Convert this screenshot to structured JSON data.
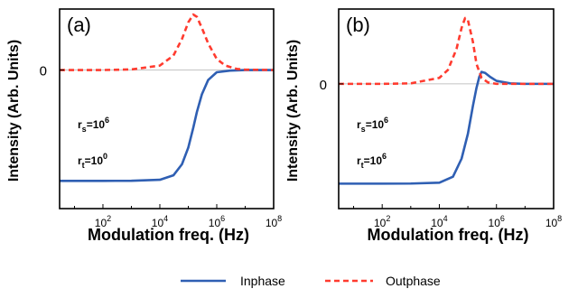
{
  "chart_data": [
    {
      "type": "line",
      "panel_label": "(a)",
      "xlabel": "Modulation freq. (Hz)",
      "ylabel": "Intensity (Arb. Units)",
      "x_scale": "log",
      "xlim": [
        3,
        100000000
      ],
      "ylim": [
        -1.25,
        0.55
      ],
      "y_tick_labels": [
        {
          "value": 0,
          "label": "0"
        }
      ],
      "zero_line": true,
      "x_ticks": [
        {
          "value": 100,
          "base": "10",
          "exp": "2"
        },
        {
          "value": 10000,
          "base": "10",
          "exp": "4"
        },
        {
          "value": 1000000,
          "base": "10",
          "exp": "6"
        },
        {
          "value": 100000000,
          "base": "10",
          "exp": "8"
        }
      ],
      "annotations": [
        {
          "id": "rs",
          "base": "r",
          "sub": "s",
          "mid": "=10",
          "sup": "6"
        },
        {
          "id": "rt",
          "base": "r",
          "sub": "t",
          "mid": "=10",
          "sup": "0"
        }
      ],
      "series": [
        {
          "name": "Inphase",
          "color": "#2f5fb3",
          "dash": "solid",
          "x": [
            3,
            10,
            100,
            1000,
            10000,
            30000,
            60000,
            100000,
            150000,
            200000,
            300000,
            500000,
            1000000,
            3000000,
            10000000,
            100000000
          ],
          "y": [
            -1.0,
            -1.0,
            -1.0,
            -0.999,
            -0.99,
            -0.95,
            -0.85,
            -0.7,
            -0.52,
            -0.38,
            -0.22,
            -0.09,
            -0.02,
            -0.005,
            0.0,
            0.0
          ]
        },
        {
          "name": "Outphase",
          "color": "#ff3b2f",
          "dash": "dashed",
          "x": [
            3,
            100,
            1000,
            10000,
            30000,
            60000,
            100000,
            150000,
            200000,
            300000,
            500000,
            1000000,
            2000000,
            5000000,
            10000000,
            100000000
          ],
          "y": [
            0.0,
            0.0,
            0.005,
            0.04,
            0.13,
            0.28,
            0.43,
            0.5,
            0.48,
            0.38,
            0.24,
            0.1,
            0.04,
            0.01,
            0.003,
            0.0
          ]
        }
      ]
    },
    {
      "type": "line",
      "panel_label": "(b)",
      "xlabel": "Modulation freq. (Hz)",
      "ylabel": "Intensity (Arb. Units)",
      "x_scale": "log",
      "xlim": [
        3,
        100000000
      ],
      "ylim": [
        -1.25,
        0.75
      ],
      "y_tick_labels": [
        {
          "value": 0,
          "label": "0"
        }
      ],
      "zero_line": true,
      "x_ticks": [
        {
          "value": 100,
          "base": "10",
          "exp": "2"
        },
        {
          "value": 10000,
          "base": "10",
          "exp": "4"
        },
        {
          "value": 1000000,
          "base": "10",
          "exp": "6"
        },
        {
          "value": 100000000,
          "base": "10",
          "exp": "8"
        }
      ],
      "annotations": [
        {
          "id": "rs",
          "base": "r",
          "sub": "s",
          "mid": "=10",
          "sup": "6"
        },
        {
          "id": "rt",
          "base": "r",
          "sub": "t",
          "mid": "=10",
          "sup": "6"
        }
      ],
      "series": [
        {
          "name": "Inphase",
          "color": "#2f5fb3",
          "dash": "solid",
          "x": [
            3,
            10,
            100,
            1000,
            10000,
            30000,
            60000,
            100000,
            150000,
            200000,
            250000,
            300000,
            400000,
            600000,
            1000000,
            3000000,
            10000000,
            100000000
          ],
          "y": [
            -1.0,
            -1.0,
            -1.0,
            -0.999,
            -0.99,
            -0.93,
            -0.75,
            -0.5,
            -0.22,
            -0.04,
            0.07,
            0.12,
            0.11,
            0.07,
            0.03,
            0.005,
            0.0,
            0.0
          ]
        },
        {
          "name": "Outphase",
          "color": "#ff3b2f",
          "dash": "dashed",
          "x": [
            3,
            100,
            1000,
            10000,
            20000,
            40000,
            60000,
            80000,
            100000,
            150000,
            200000,
            300000,
            500000,
            1000000,
            3000000,
            10000000,
            100000000
          ],
          "y": [
            0.0,
            0.0,
            0.005,
            0.06,
            0.14,
            0.35,
            0.56,
            0.66,
            0.64,
            0.42,
            0.2,
            0.06,
            0.015,
            0.0,
            0.0,
            0.0,
            0.0
          ]
        }
      ]
    }
  ],
  "legend": {
    "items": [
      {
        "label": "Inphase",
        "color": "#2f5fb3",
        "dash": "solid"
      },
      {
        "label": "Outphase",
        "color": "#ff3b2f",
        "dash": "dashed"
      }
    ]
  }
}
